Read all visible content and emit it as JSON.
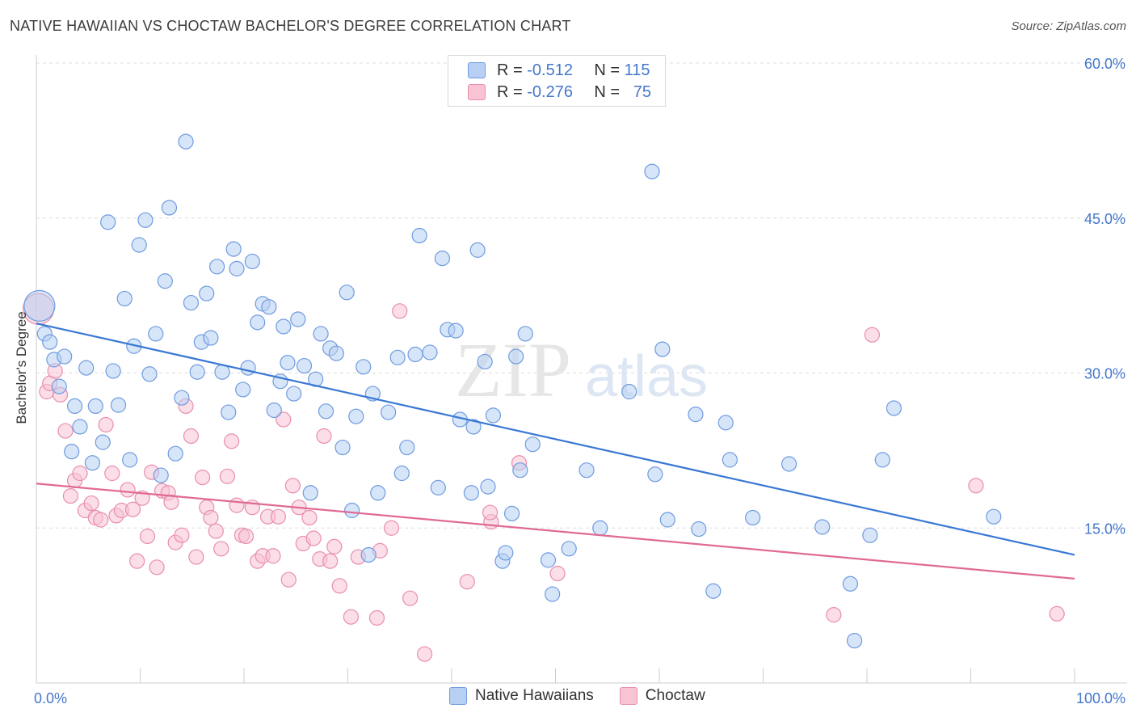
{
  "header": {
    "title": "NATIVE HAWAIIAN VS CHOCTAW BACHELOR'S DEGREE CORRELATION CHART",
    "source": "Source: ZipAtlas.com"
  },
  "legend": {
    "rows": [
      {
        "r_label": "R =",
        "r_value": "-0.512",
        "n_label": "N =",
        "n_value": "115"
      },
      {
        "r_label": "R =",
        "r_value": "-0.276",
        "n_label": "N =",
        "n_value": "75"
      }
    ],
    "series_names": [
      "Native Hawaiians",
      "Choctaw"
    ]
  },
  "watermark": {
    "zip": "ZIP",
    "atlas": "atlas"
  },
  "colors": {
    "blue_fill": "#b7cff3",
    "blue_stroke": "#6f9be0",
    "blue_line": "#3a78d4",
    "pink_fill": "#f8c3d3",
    "pink_stroke": "#e98ead",
    "pink_line": "#e06a94",
    "tick_label": "#4477cc",
    "grid": "#dddddd"
  },
  "chart_data": {
    "type": "scatter",
    "xlabel": "",
    "ylabel": "Bachelor's Degree",
    "xlim": [
      0,
      100
    ],
    "ylim": [
      0,
      60
    ],
    "x_tick_labels": [
      "0.0%",
      "100.0%"
    ],
    "y_ticks": [
      15,
      30,
      45,
      60
    ],
    "y_tick_labels": [
      "15.0%",
      "30.0%",
      "45.0%",
      "60.0%"
    ],
    "grid": "horizontal dashed",
    "legend_position": "top-center",
    "series": [
      {
        "name": "Native Hawaiians",
        "trend": {
          "x": [
            0,
            100
          ],
          "y": [
            34.8,
            12.4
          ]
        },
        "points": [
          [
            0.3,
            36.5,
            3
          ],
          [
            0.8,
            33.8,
            1
          ],
          [
            1.3,
            33.0,
            1
          ],
          [
            1.7,
            31.3,
            1
          ],
          [
            2.2,
            28.7,
            1
          ],
          [
            2.7,
            31.6,
            1
          ],
          [
            3.4,
            22.4,
            1
          ],
          [
            3.7,
            26.8,
            1
          ],
          [
            4.2,
            24.8,
            1
          ],
          [
            4.8,
            30.5,
            1
          ],
          [
            5.4,
            21.3,
            1
          ],
          [
            5.7,
            26.8,
            1
          ],
          [
            6.4,
            23.3,
            1
          ],
          [
            6.9,
            44.6,
            1
          ],
          [
            7.4,
            30.2,
            1
          ],
          [
            7.9,
            26.9,
            1
          ],
          [
            8.5,
            37.2,
            1
          ],
          [
            9.0,
            21.6,
            1
          ],
          [
            9.4,
            32.6,
            1
          ],
          [
            9.9,
            42.4,
            1
          ],
          [
            10.5,
            44.8,
            1
          ],
          [
            10.9,
            29.9,
            1
          ],
          [
            11.5,
            33.8,
            1
          ],
          [
            12.0,
            20.1,
            1
          ],
          [
            12.4,
            38.9,
            1
          ],
          [
            12.8,
            46.0,
            1
          ],
          [
            13.4,
            22.2,
            1
          ],
          [
            14.0,
            27.6,
            1
          ],
          [
            14.4,
            52.4,
            1
          ],
          [
            14.9,
            36.8,
            1
          ],
          [
            15.5,
            30.1,
            1
          ],
          [
            15.9,
            33.0,
            1
          ],
          [
            16.4,
            37.7,
            1
          ],
          [
            16.8,
            33.4,
            1
          ],
          [
            17.4,
            40.3,
            1
          ],
          [
            17.9,
            30.1,
            1
          ],
          [
            18.5,
            26.2,
            1
          ],
          [
            19.0,
            42.0,
            1
          ],
          [
            19.3,
            40.1,
            1
          ],
          [
            19.9,
            28.4,
            1
          ],
          [
            20.4,
            30.5,
            1
          ],
          [
            20.8,
            40.8,
            1
          ],
          [
            21.3,
            34.9,
            1
          ],
          [
            21.8,
            36.7,
            1
          ],
          [
            22.4,
            36.4,
            1
          ],
          [
            22.9,
            26.4,
            1
          ],
          [
            23.5,
            29.2,
            1
          ],
          [
            23.8,
            34.5,
            1
          ],
          [
            24.2,
            31.0,
            1
          ],
          [
            24.8,
            28.0,
            1
          ],
          [
            25.2,
            35.2,
            1
          ],
          [
            25.8,
            30.7,
            1
          ],
          [
            26.4,
            18.4,
            1
          ],
          [
            26.9,
            29.4,
            1
          ],
          [
            27.4,
            33.8,
            1
          ],
          [
            27.9,
            26.3,
            1
          ],
          [
            28.3,
            32.4,
            1
          ],
          [
            28.9,
            31.9,
            1
          ],
          [
            29.5,
            22.8,
            1
          ],
          [
            29.9,
            37.8,
            1
          ],
          [
            30.4,
            16.7,
            1
          ],
          [
            30.8,
            25.8,
            1
          ],
          [
            31.5,
            30.6,
            1
          ],
          [
            32.0,
            12.4,
            1
          ],
          [
            32.4,
            28.0,
            1
          ],
          [
            32.9,
            18.4,
            1
          ],
          [
            33.9,
            26.2,
            1
          ],
          [
            34.8,
            31.5,
            1
          ],
          [
            35.2,
            20.3,
            1
          ],
          [
            35.7,
            22.8,
            1
          ],
          [
            36.5,
            31.8,
            1
          ],
          [
            36.9,
            43.3,
            1
          ],
          [
            37.9,
            32.0,
            1
          ],
          [
            38.7,
            18.9,
            1
          ],
          [
            39.1,
            41.1,
            1
          ],
          [
            39.6,
            34.2,
            1
          ],
          [
            40.4,
            34.1,
            1
          ],
          [
            40.8,
            25.5,
            1
          ],
          [
            41.9,
            18.4,
            1
          ],
          [
            42.1,
            24.8,
            1
          ],
          [
            42.5,
            41.9,
            1
          ],
          [
            43.2,
            31.1,
            1
          ],
          [
            43.5,
            19.0,
            1
          ],
          [
            44.0,
            25.9,
            1
          ],
          [
            44.9,
            11.8,
            1
          ],
          [
            45.2,
            12.6,
            1
          ],
          [
            45.8,
            16.4,
            1
          ],
          [
            46.2,
            31.6,
            1
          ],
          [
            46.6,
            20.6,
            1
          ],
          [
            47.1,
            33.8,
            1
          ],
          [
            47.8,
            23.1,
            1
          ],
          [
            49.3,
            11.9,
            1
          ],
          [
            49.7,
            8.6,
            1
          ],
          [
            51.3,
            13.0,
            1
          ],
          [
            53.0,
            20.6,
            1
          ],
          [
            54.3,
            15.0,
            1
          ],
          [
            57.1,
            28.2,
            1
          ],
          [
            59.3,
            49.5,
            1
          ],
          [
            59.6,
            20.2,
            1
          ],
          [
            60.3,
            32.3,
            1
          ],
          [
            60.8,
            15.8,
            1
          ],
          [
            63.5,
            26.0,
            1
          ],
          [
            63.8,
            14.9,
            1
          ],
          [
            65.2,
            8.9,
            1
          ],
          [
            66.4,
            25.2,
            1
          ],
          [
            66.8,
            21.6,
            1
          ],
          [
            69.0,
            16.0,
            1
          ],
          [
            72.5,
            21.2,
            1
          ],
          [
            75.7,
            15.1,
            1
          ],
          [
            78.4,
            9.6,
            1
          ],
          [
            78.8,
            4.1,
            1
          ],
          [
            80.3,
            14.3,
            1
          ],
          [
            81.5,
            21.6,
            1
          ],
          [
            82.6,
            26.6,
            1
          ],
          [
            92.2,
            16.1,
            1
          ]
        ]
      },
      {
        "name": "Choctaw",
        "trend": {
          "x": [
            0,
            100
          ],
          "y": [
            19.3,
            10.1
          ]
        },
        "points": [
          [
            0.2,
            36.2,
            3
          ],
          [
            1.0,
            28.2,
            1
          ],
          [
            1.3,
            29.0,
            1
          ],
          [
            1.8,
            30.2,
            1
          ],
          [
            2.3,
            27.9,
            1
          ],
          [
            2.8,
            24.4,
            1
          ],
          [
            3.3,
            18.1,
            1
          ],
          [
            3.7,
            19.6,
            1
          ],
          [
            4.2,
            20.3,
            1
          ],
          [
            4.7,
            16.7,
            1
          ],
          [
            5.3,
            17.4,
            1
          ],
          [
            5.7,
            16.0,
            1
          ],
          [
            6.2,
            15.8,
            1
          ],
          [
            6.7,
            25.0,
            1
          ],
          [
            7.3,
            20.3,
            1
          ],
          [
            7.7,
            16.2,
            1
          ],
          [
            8.2,
            16.7,
            1
          ],
          [
            8.8,
            18.7,
            1
          ],
          [
            9.3,
            16.8,
            1
          ],
          [
            9.7,
            11.8,
            1
          ],
          [
            10.2,
            17.9,
            1
          ],
          [
            10.7,
            14.2,
            1
          ],
          [
            11.1,
            20.4,
            1
          ],
          [
            11.6,
            11.2,
            1
          ],
          [
            12.1,
            18.6,
            1
          ],
          [
            12.7,
            18.4,
            1
          ],
          [
            13.0,
            17.5,
            1
          ],
          [
            13.4,
            13.6,
            1
          ],
          [
            14.0,
            14.3,
            1
          ],
          [
            14.4,
            26.8,
            1
          ],
          [
            14.9,
            23.9,
            1
          ],
          [
            15.4,
            12.2,
            1
          ],
          [
            16.0,
            19.9,
            1
          ],
          [
            16.4,
            17.0,
            1
          ],
          [
            16.8,
            16.0,
            1
          ],
          [
            17.3,
            14.7,
            1
          ],
          [
            17.8,
            13.0,
            1
          ],
          [
            18.4,
            20.0,
            1
          ],
          [
            18.8,
            23.4,
            1
          ],
          [
            19.3,
            17.2,
            1
          ],
          [
            19.8,
            14.3,
            1
          ],
          [
            20.2,
            14.2,
            1
          ],
          [
            20.8,
            17.0,
            1
          ],
          [
            21.3,
            11.8,
            1
          ],
          [
            21.8,
            12.3,
            1
          ],
          [
            22.3,
            16.1,
            1
          ],
          [
            22.8,
            12.3,
            1
          ],
          [
            23.3,
            16.1,
            1
          ],
          [
            23.8,
            25.5,
            1
          ],
          [
            24.3,
            10.0,
            1
          ],
          [
            24.7,
            19.1,
            1
          ],
          [
            25.3,
            17.0,
            1
          ],
          [
            25.7,
            13.5,
            1
          ],
          [
            26.3,
            16.0,
            1
          ],
          [
            26.7,
            14.0,
            1
          ],
          [
            27.3,
            12.0,
            1
          ],
          [
            27.7,
            23.9,
            1
          ],
          [
            28.3,
            11.8,
            1
          ],
          [
            28.7,
            13.2,
            1
          ],
          [
            29.2,
            9.4,
            1
          ],
          [
            30.3,
            6.4,
            1
          ],
          [
            31.0,
            12.2,
            1
          ],
          [
            32.8,
            6.3,
            1
          ],
          [
            33.1,
            12.8,
            1
          ],
          [
            34.2,
            15.0,
            1
          ],
          [
            35.0,
            36.0,
            1
          ],
          [
            36.0,
            8.2,
            1
          ],
          [
            37.4,
            2.8,
            1
          ],
          [
            41.5,
            9.8,
            1
          ],
          [
            43.8,
            15.6,
            1
          ],
          [
            46.5,
            21.3,
            1
          ],
          [
            50.2,
            10.6,
            1
          ],
          [
            76.8,
            6.6,
            1
          ],
          [
            80.5,
            33.7,
            1
          ],
          [
            90.5,
            19.1,
            1
          ],
          [
            98.3,
            6.7,
            1
          ],
          [
            43.7,
            16.5,
            1
          ]
        ]
      }
    ]
  }
}
